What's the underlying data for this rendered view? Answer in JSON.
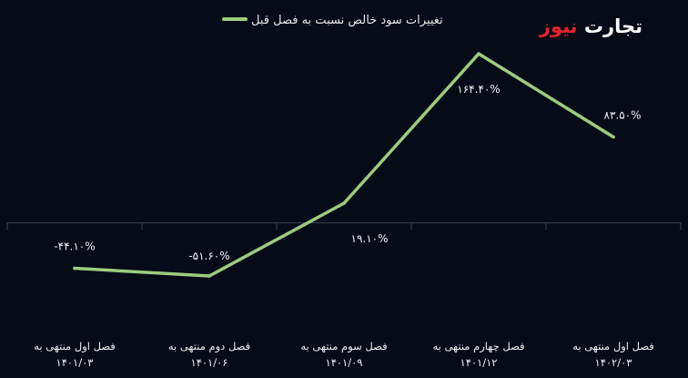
{
  "logo": {
    "part1": "تجارت",
    "part2": "نیوز",
    "color1": "#ffffff",
    "color2": "#e8232a"
  },
  "colors": {
    "background": "#060b18",
    "line": "#9ccd7f",
    "grid": "#3a4150",
    "text": "#f0f0f0"
  },
  "chart_data": {
    "type": "line",
    "title": "",
    "xlabel": "",
    "ylabel": "",
    "ylim": [
      -90,
      190
    ],
    "grid": "vertical",
    "legend_position": "top-center",
    "categories": [
      "فصل اول منتهی به ۱۴۰۱/۰۳",
      "فصل دوم منتهی به ۱۴۰۱/۰۶",
      "فصل سوم منتهی به ۱۴۰۱/۰۹",
      "فصل چهارم منتهی به ۱۴۰۱/۱۲",
      "فصل اول منتهی به ۱۴۰۲/۰۳"
    ],
    "category_lines": [
      [
        "فصل اول منتهی به",
        "۱۴۰۱/۰۳"
      ],
      [
        "فصل دوم منتهی به",
        "۱۴۰۱/۰۶"
      ],
      [
        "فصل سوم منتهی به",
        "۱۴۰۱/۰۹"
      ],
      [
        "فصل چهارم منتهی به",
        "۱۴۰۱/۱۲"
      ],
      [
        "فصل اول منتهی به",
        "۱۴۰۲/۰۳"
      ]
    ],
    "series": [
      {
        "name": "تغییرات سود خالص نسبت به فصل قبل",
        "values": [
          -44.1,
          -51.6,
          19.1,
          164.4,
          83.5
        ],
        "labels": [
          "-۴۴.۱۰%",
          "-۵۱.۶۰%",
          "۱۹.۱۰%",
          "۱۶۴.۴۰%",
          "۸۳.۵۰%"
        ]
      }
    ]
  }
}
